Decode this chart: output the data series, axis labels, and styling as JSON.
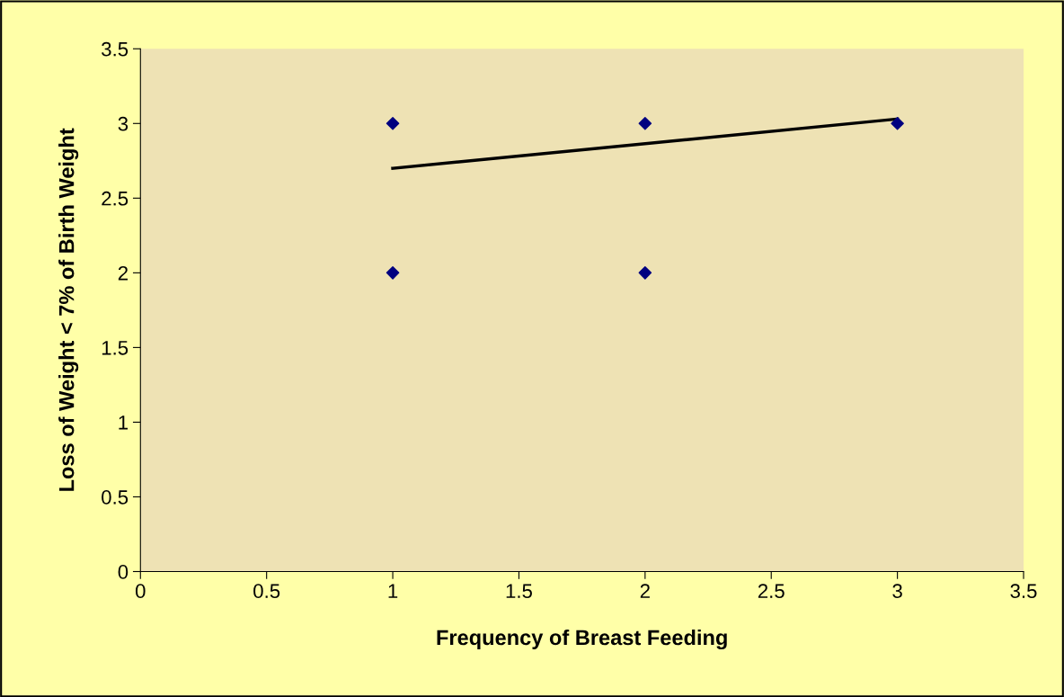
{
  "chart_data": {
    "type": "scatter",
    "xlabel": "Frequency of Breast Feeding",
    "ylabel": "Loss of Weight < 7% of Birth Weight",
    "series": [
      {
        "type": "scatter",
        "color": "#000080",
        "marker": "diamond",
        "x": [
          1,
          1,
          2,
          2,
          3
        ],
        "values": [
          3,
          2,
          3,
          2,
          3
        ]
      },
      {
        "type": "line",
        "color": "#000000",
        "marker": "none",
        "line_style": "solid",
        "x": [
          1,
          3
        ],
        "values": [
          2.7,
          3.03
        ]
      }
    ],
    "xlim": [
      0,
      3.5
    ],
    "xticks": [
      0,
      0.5,
      1,
      1.5,
      2,
      2.5,
      3,
      3.5
    ],
    "ylim": [
      0,
      3.5
    ],
    "yticks": [
      0,
      0.5,
      1,
      1.5,
      2,
      2.5,
      3,
      3.5
    ],
    "grid": false,
    "legend": false
  }
}
